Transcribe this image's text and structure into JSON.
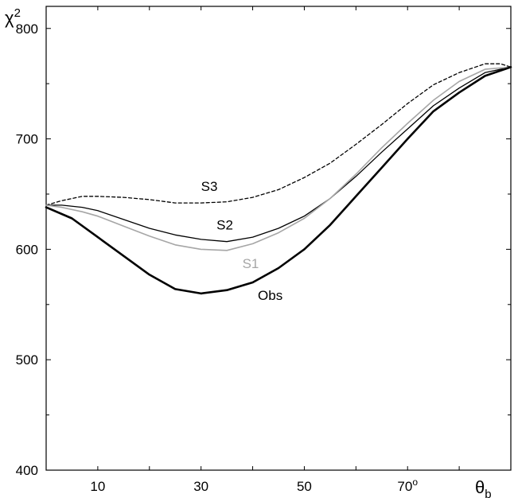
{
  "chart_data": {
    "type": "line",
    "ylabel": "χ",
    "ylabel_sup": "2",
    "xlabel": "θ",
    "xlabel_sub": "b",
    "xlim": [
      0,
      90
    ],
    "ylim": [
      400,
      820
    ],
    "x_ticks": [
      {
        "value": 10,
        "label": "10"
      },
      {
        "value": 30,
        "label": "30"
      },
      {
        "value": 50,
        "label": "50"
      },
      {
        "value": 70,
        "label": "70",
        "sup": "o"
      }
    ],
    "y_ticks": [
      {
        "value": 400,
        "label": "400"
      },
      {
        "value": 500,
        "label": "500"
      },
      {
        "value": 600,
        "label": "600"
      },
      {
        "value": 700,
        "label": "700"
      },
      {
        "value": 800,
        "label": "800"
      }
    ],
    "grid": false,
    "series": [
      {
        "name": "S3",
        "color": "#000000",
        "style": "dashed",
        "width": 1.3,
        "label_at": [
          30,
          653
        ],
        "x": [
          0,
          3,
          7,
          10,
          15,
          20,
          25,
          30,
          35,
          40,
          45,
          50,
          55,
          60,
          65,
          70,
          75,
          80,
          85,
          88,
          90
        ],
        "y": [
          640,
          644,
          648,
          648,
          647,
          645,
          642,
          642,
          643,
          647,
          654,
          665,
          678,
          695,
          713,
          732,
          749,
          760,
          768,
          768,
          765
        ]
      },
      {
        "name": "S2",
        "color": "#000000",
        "style": "solid",
        "width": 1.3,
        "label_at": [
          33,
          618
        ],
        "x": [
          0,
          3,
          7,
          10,
          15,
          20,
          25,
          30,
          35,
          40,
          45,
          50,
          55,
          60,
          65,
          70,
          75,
          80,
          85,
          90
        ],
        "y": [
          640,
          640,
          638,
          635,
          627,
          619,
          613,
          609,
          607,
          611,
          619,
          630,
          646,
          666,
          688,
          709,
          730,
          746,
          760,
          765
        ]
      },
      {
        "name": "S1",
        "color": "#a6a6a6",
        "style": "solid",
        "width": 1.6,
        "label_at": [
          38,
          583
        ],
        "x": [
          0,
          3,
          7,
          10,
          15,
          20,
          25,
          30,
          35,
          40,
          45,
          50,
          55,
          60,
          65,
          70,
          75,
          80,
          85,
          90
        ],
        "y": [
          640,
          638,
          634,
          630,
          621,
          612,
          604,
          600,
          599,
          605,
          615,
          628,
          646,
          668,
          692,
          714,
          735,
          752,
          763,
          765
        ]
      },
      {
        "name": "Obs",
        "color": "#000000",
        "style": "solid",
        "width": 2.6,
        "label_at": [
          41,
          554
        ],
        "x": [
          0,
          5,
          10,
          15,
          20,
          25,
          30,
          35,
          40,
          45,
          50,
          55,
          60,
          65,
          70,
          75,
          80,
          85,
          90
        ],
        "y": [
          638,
          628,
          611,
          594,
          577,
          564,
          560,
          563,
          570,
          583,
          600,
          622,
          648,
          674,
          700,
          725,
          742,
          757,
          765
        ]
      }
    ]
  }
}
